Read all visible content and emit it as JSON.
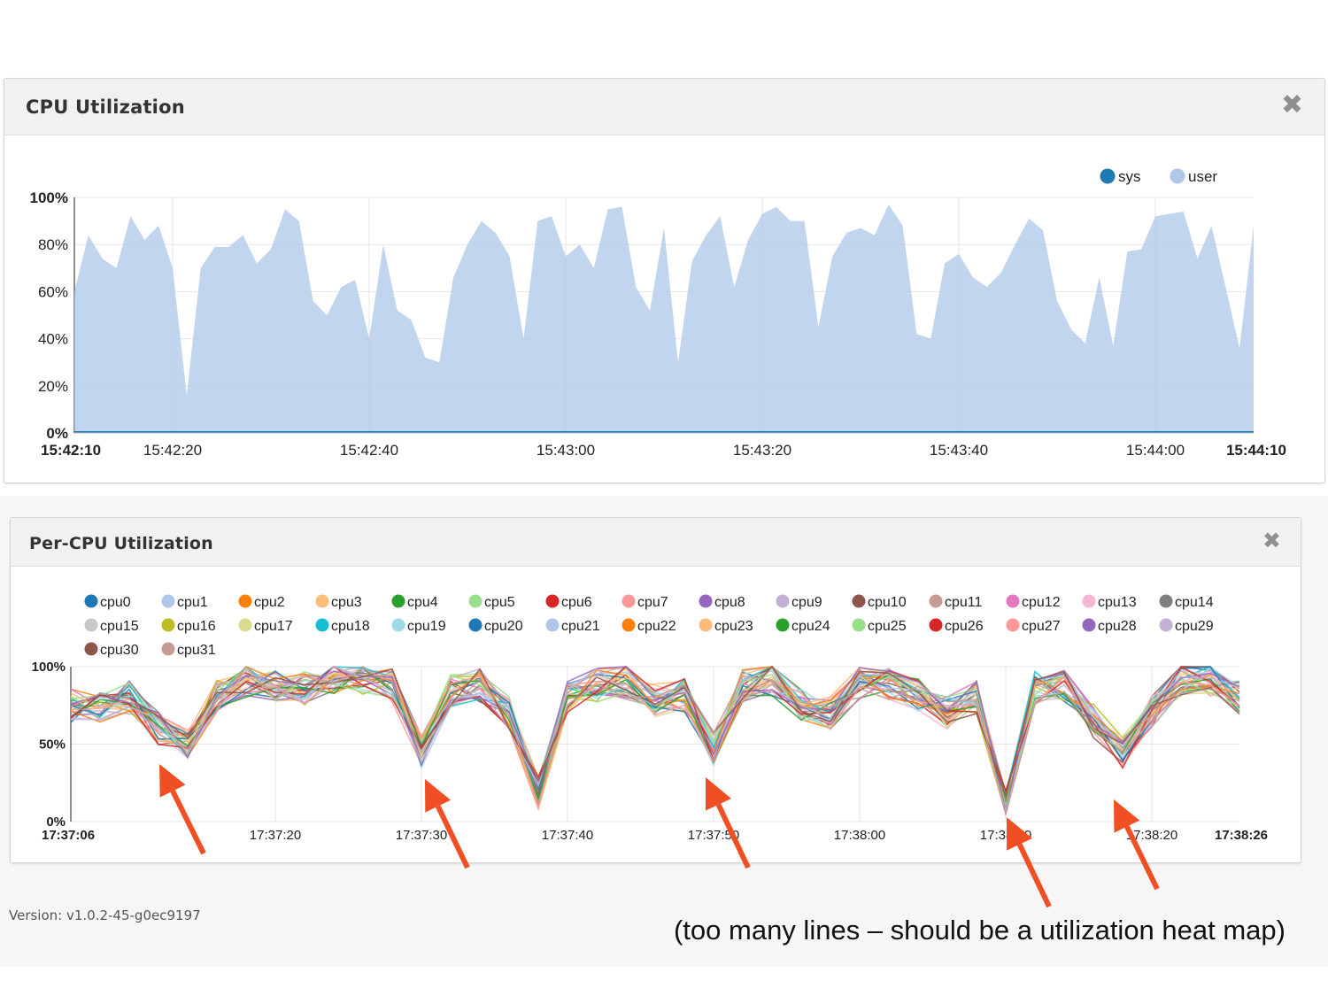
{
  "panels": {
    "cpu": {
      "title": "CPU Utilization",
      "close_label": "✖"
    },
    "percpu": {
      "title": "Per-CPU Utilization",
      "close_label": "✖"
    }
  },
  "footer": {
    "version": "Version: v1.0.2-45-g0ec9197"
  },
  "annotation": {
    "text": "(too many lines – should be a utilization heat map)"
  },
  "colors": {
    "sys": "#1f77b4",
    "user": "#aec7e8",
    "arrow": "#f04e23",
    "grid": "#e6e6e6"
  },
  "chart_data": [
    {
      "type": "area",
      "legend": [
        "sys",
        "user"
      ],
      "legend_position": "top-right",
      "x_tick_labels": [
        "15:42:10",
        "15:42:20",
        "15:42:40",
        "15:43:00",
        "15:43:20",
        "15:43:40",
        "15:44:00",
        "15:44:10"
      ],
      "x_tick_seconds": [
        0,
        10,
        30,
        50,
        70,
        90,
        110,
        120
      ],
      "y_tick_labels": [
        "0%",
        "20%",
        "40%",
        "60%",
        "80%",
        "100%"
      ],
      "ylim": [
        0,
        100
      ],
      "grid": true,
      "x_seconds_from_start": [
        0,
        2,
        5,
        7,
        10,
        12,
        14,
        17,
        19,
        20,
        22,
        24,
        25,
        27,
        29,
        30,
        32,
        33,
        35,
        37,
        39,
        41,
        43,
        44,
        46,
        48,
        50,
        52,
        54,
        55,
        57,
        59,
        61,
        63,
        65,
        67,
        69,
        70,
        72,
        74,
        76,
        78,
        80,
        82,
        84,
        85,
        87,
        89,
        91,
        93,
        95,
        97,
        99,
        101,
        103,
        105,
        107,
        109,
        111,
        113,
        115,
        117,
        120
      ],
      "series": [
        {
          "name": "user",
          "values": [
            60,
            84,
            74,
            70,
            92,
            82,
            88,
            70,
            16,
            70,
            79,
            79,
            84,
            72,
            78,
            95,
            90,
            56,
            50,
            62,
            65,
            40,
            80,
            52,
            48,
            32,
            30,
            66,
            80,
            90,
            85,
            75,
            40,
            90,
            92,
            75,
            80,
            70,
            95,
            96,
            62,
            52,
            87,
            30,
            73,
            84,
            92,
            62,
            82,
            93,
            96,
            90,
            90,
            45,
            75,
            85,
            87,
            84,
            97,
            88,
            42,
            40,
            72,
            76,
            66,
            62,
            68,
            80,
            91,
            86,
            56,
            44,
            38,
            66,
            37,
            77,
            78,
            92,
            93,
            94,
            74,
            88,
            62,
            36,
            88
          ],
          "note_values_per_x": "values are sampled more densely than x_seconds_from_start; plotted evenly across 0-120 s"
        },
        {
          "name": "sys",
          "values": [
            0,
            0,
            0,
            0,
            0,
            0,
            0,
            0,
            0,
            0,
            0,
            0,
            0,
            0,
            0,
            0,
            0,
            0,
            0,
            0
          ]
        }
      ]
    },
    {
      "type": "line",
      "series_count": 32,
      "legend": [
        "cpu0",
        "cpu1",
        "cpu2",
        "cpu3",
        "cpu4",
        "cpu5",
        "cpu6",
        "cpu7",
        "cpu8",
        "cpu9",
        "cpu10",
        "cpu11",
        "cpu12",
        "cpu13",
        "cpu14",
        "cpu15",
        "cpu16",
        "cpu17",
        "cpu18",
        "cpu19",
        "cpu20",
        "cpu21",
        "cpu22",
        "cpu23",
        "cpu24",
        "cpu25",
        "cpu26",
        "cpu27",
        "cpu28",
        "cpu29",
        "cpu30",
        "cpu31"
      ],
      "legend_position": "top",
      "series_colors": [
        "#1f77b4",
        "#aec7e8",
        "#ff7f0e",
        "#ffbb78",
        "#2ca02c",
        "#98df8a",
        "#d62728",
        "#ff9896",
        "#9467bd",
        "#c5b0d5",
        "#8c564b",
        "#c49c94",
        "#e377c2",
        "#f7b6d2",
        "#7f7f7f",
        "#c7c7c7",
        "#bcbd22",
        "#dbdb8d",
        "#17becf",
        "#9edae5",
        "#1f77b4",
        "#aec7e8",
        "#ff7f0e",
        "#ffbb78",
        "#2ca02c",
        "#98df8a",
        "#d62728",
        "#ff9896",
        "#9467bd",
        "#c5b0d5",
        "#8c564b",
        "#c49c94"
      ],
      "x_tick_labels": [
        "17:37:06",
        "17:37:20",
        "17:37:30",
        "17:37:40",
        "17:37:50",
        "17:38:00",
        "17:38:10",
        "17:38:20",
        "17:38:26"
      ],
      "x_tick_seconds": [
        0,
        14,
        24,
        34,
        44,
        54,
        64,
        74,
        80
      ],
      "y_tick_labels": [
        "0%",
        "50%",
        "100%"
      ],
      "ylim": [
        0,
        100
      ],
      "grid": true,
      "base_profile_x_seconds": [
        0,
        2,
        4,
        6,
        8,
        10,
        12,
        14,
        16,
        18,
        20,
        22,
        24,
        26,
        28,
        30,
        32,
        34,
        36,
        38,
        40,
        42,
        44,
        46,
        48,
        50,
        52,
        54,
        56,
        58,
        60,
        62,
        64,
        66,
        68,
        70,
        72,
        74,
        76,
        78,
        80
      ],
      "base_profile_values": [
        75,
        72,
        80,
        60,
        50,
        82,
        90,
        88,
        86,
        92,
        93,
        88,
        45,
        85,
        88,
        70,
        18,
        80,
        88,
        90,
        78,
        82,
        47,
        88,
        92,
        75,
        70,
        90,
        88,
        82,
        70,
        80,
        10,
        86,
        88,
        65,
        45,
        72,
        92,
        90,
        80
      ]
    }
  ]
}
